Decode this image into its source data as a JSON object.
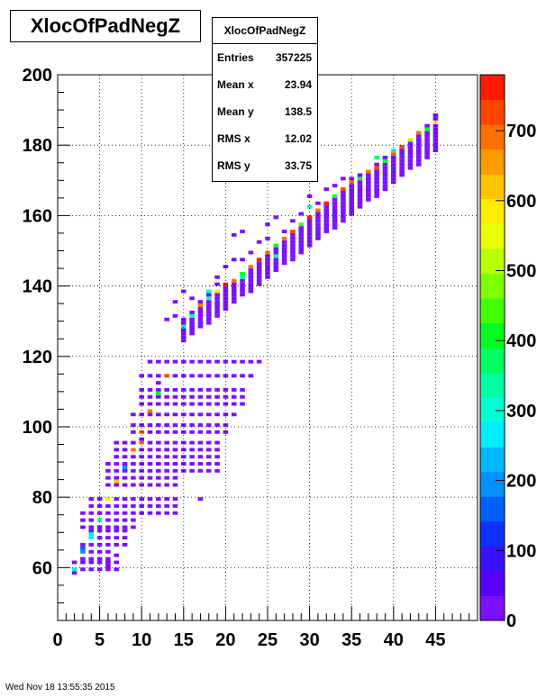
{
  "chart_data": {
    "type": "heatmap",
    "title": "XlocOfPadNegZ",
    "stats": {
      "name": "XlocOfPadNegZ",
      "rows": [
        {
          "label": "Entries",
          "value": "357225"
        },
        {
          "label": "Mean x",
          "value": "23.94"
        },
        {
          "label": "Mean y",
          "value": "138.5"
        },
        {
          "label": "RMS x",
          "value": "12.02"
        },
        {
          "label": "RMS y",
          "value": "33.75"
        }
      ]
    },
    "xlim": [
      0,
      50
    ],
    "ylim": [
      45,
      200
    ],
    "x_ticks": [
      0,
      5,
      10,
      15,
      20,
      25,
      30,
      35,
      40,
      45
    ],
    "y_ticks": [
      60,
      80,
      100,
      120,
      140,
      160,
      180,
      200
    ],
    "z_range": [
      0,
      780
    ],
    "z_ticks": [
      0,
      100,
      200,
      300,
      400,
      500,
      600,
      700
    ],
    "palette": [
      "#7a10ff",
      "#5a00ff",
      "#3a10ff",
      "#1030ff",
      "#0060ff",
      "#0090ff",
      "#00b8ff",
      "#00ecff",
      "#00ffd2",
      "#00ffa0",
      "#00ff60",
      "#00ff20",
      "#40ff00",
      "#80ff00",
      "#b8ff00",
      "#e8ff00",
      "#ffec00",
      "#ffc400",
      "#ff9a00",
      "#ff7000",
      "#ff4400",
      "#ff1a00"
    ],
    "grid": true,
    "xlabel": "",
    "ylabel": "",
    "bin_width_x": 1,
    "bin_height_y": 1,
    "cells": [
      {
        "x": [
          2,
          7
        ],
        "y": [
          59,
          61
        ],
        "z": 30,
        "hot": [
          [
            2,
            59,
            250
          ]
        ]
      },
      {
        "x": [
          3,
          6
        ],
        "y": [
          62,
          66
        ],
        "z": 30,
        "hot": [
          [
            3,
            64,
            200
          ],
          [
            3,
            65,
            150
          ]
        ]
      },
      {
        "x": [
          4,
          8
        ],
        "y": [
          66,
          71
        ],
        "z": 30,
        "hot": [
          [
            4,
            68,
            280
          ],
          [
            4,
            69,
            250
          ]
        ]
      },
      {
        "x": [
          3,
          9
        ],
        "y": [
          71,
          75
        ],
        "z": 30,
        "hot": [
          [
            5,
            73,
            320
          ]
        ]
      },
      {
        "x": [
          4,
          14
        ],
        "y": [
          75,
          80
        ],
        "z": 30,
        "hot": [
          [
            6,
            79,
            600
          ]
        ]
      },
      {
        "x": [
          6,
          14
        ],
        "y": [
          83,
          85
        ],
        "z": 30,
        "hot": [
          [
            7,
            84,
            620
          ]
        ]
      },
      {
        "x": [
          6,
          19
        ],
        "y": [
          87,
          89
        ],
        "z": 30,
        "hot": [
          [
            8,
            88,
            180
          ]
        ]
      },
      {
        "x": [
          7,
          19
        ],
        "y": [
          91,
          95
        ],
        "z": 30,
        "hot": [
          [
            9,
            93,
            700
          ],
          [
            10,
            95,
            680
          ]
        ]
      },
      {
        "x": [
          9,
          20
        ],
        "y": [
          98,
          100
        ],
        "z": 30,
        "hot": [
          [
            10,
            98,
            740
          ]
        ]
      },
      {
        "x": [
          9,
          21
        ],
        "y": [
          103,
          104
        ],
        "z": 30,
        "hot": [
          [
            11,
            104,
            700
          ]
        ]
      },
      {
        "x": [
          10,
          22
        ],
        "y": [
          106,
          111
        ],
        "z": 30,
        "hot": [
          [
            12,
            109,
            400
          ]
        ]
      },
      {
        "x": [
          10,
          23
        ],
        "y": [
          114,
          115
        ],
        "z": 30,
        "hot": [
          [
            13,
            114,
            720
          ]
        ]
      },
      {
        "x": [
          11,
          24
        ],
        "y": [
          118,
          119
        ],
        "z": 30,
        "hot": []
      }
    ],
    "bands": [
      {
        "x": [
          15,
          45
        ],
        "y_lo_start": 124,
        "y_lo_end": 178,
        "y_hi_start": 130,
        "y_hi_end": 187,
        "z": 30
      }
    ],
    "sparse": [
      [
        2,
        58,
        30
      ],
      [
        5,
        61,
        30
      ],
      [
        6,
        60,
        30
      ],
      [
        6,
        59,
        30
      ],
      [
        5,
        62,
        30
      ],
      [
        6,
        64,
        30
      ],
      [
        7,
        63,
        30
      ],
      [
        13,
        130,
        30
      ],
      [
        14,
        131,
        30
      ],
      [
        14,
        135,
        30
      ],
      [
        15,
        138,
        30
      ],
      [
        16,
        136,
        30
      ],
      [
        17,
        135,
        30
      ],
      [
        18,
        137,
        30
      ],
      [
        19,
        142,
        30
      ],
      [
        20,
        145,
        30
      ],
      [
        21,
        147,
        30
      ],
      [
        21,
        154,
        30
      ],
      [
        22,
        147,
        30
      ],
      [
        23,
        149,
        30
      ],
      [
        24,
        152,
        30
      ],
      [
        25,
        153,
        30
      ],
      [
        25,
        157,
        30
      ],
      [
        26,
        159,
        30
      ],
      [
        27,
        155,
        30
      ],
      [
        28,
        158,
        30
      ],
      [
        29,
        160,
        30
      ],
      [
        30,
        165,
        30
      ],
      [
        31,
        163,
        30
      ],
      [
        32,
        167,
        30
      ],
      [
        33,
        168,
        30
      ],
      [
        34,
        170,
        30
      ],
      [
        35,
        170,
        30
      ],
      [
        36,
        171,
        30
      ],
      [
        37,
        172,
        30
      ],
      [
        38,
        174,
        30
      ],
      [
        39,
        174,
        30
      ],
      [
        40,
        176,
        30
      ],
      [
        41,
        179,
        30
      ],
      [
        42,
        180,
        30
      ],
      [
        43,
        182,
        30
      ],
      [
        44,
        182,
        30
      ],
      [
        45,
        187,
        30
      ],
      [
        45,
        188,
        30
      ],
      [
        17,
        79,
        30
      ],
      [
        10,
        96,
        30
      ],
      [
        12,
        112,
        30
      ],
      [
        19,
        140,
        30
      ],
      [
        22,
        155,
        30
      ]
    ],
    "hotspots": [
      [
        16,
        131,
        320
      ],
      [
        17,
        134,
        700
      ],
      [
        18,
        136,
        350
      ],
      [
        19,
        138,
        600
      ],
      [
        20,
        140,
        780
      ],
      [
        21,
        141,
        700
      ],
      [
        22,
        143,
        400
      ],
      [
        23,
        145,
        700
      ],
      [
        24,
        147,
        760
      ],
      [
        25,
        149,
        700
      ],
      [
        26,
        151,
        400
      ],
      [
        27,
        153,
        700
      ],
      [
        28,
        155,
        740
      ],
      [
        29,
        157,
        440
      ],
      [
        30,
        159,
        760
      ],
      [
        31,
        161,
        700
      ],
      [
        32,
        163,
        780
      ],
      [
        33,
        165,
        400
      ],
      [
        34,
        167,
        720
      ],
      [
        35,
        169,
        700
      ],
      [
        36,
        170,
        400
      ],
      [
        37,
        172,
        700
      ],
      [
        38,
        173,
        740
      ],
      [
        39,
        175,
        420
      ],
      [
        40,
        177,
        700
      ],
      [
        41,
        179,
        740
      ],
      [
        42,
        181,
        500
      ],
      [
        43,
        183,
        700
      ],
      [
        44,
        184,
        420
      ],
      [
        45,
        186,
        600
      ],
      [
        15,
        128,
        350
      ],
      [
        18,
        138,
        300
      ],
      [
        22,
        142,
        320
      ],
      [
        26,
        148,
        350
      ],
      [
        30,
        162,
        320
      ],
      [
        38,
        176,
        380
      ],
      [
        40,
        178,
        300
      ]
    ],
    "footer_text": "Wed Nov 18 13:55:35 2015"
  }
}
